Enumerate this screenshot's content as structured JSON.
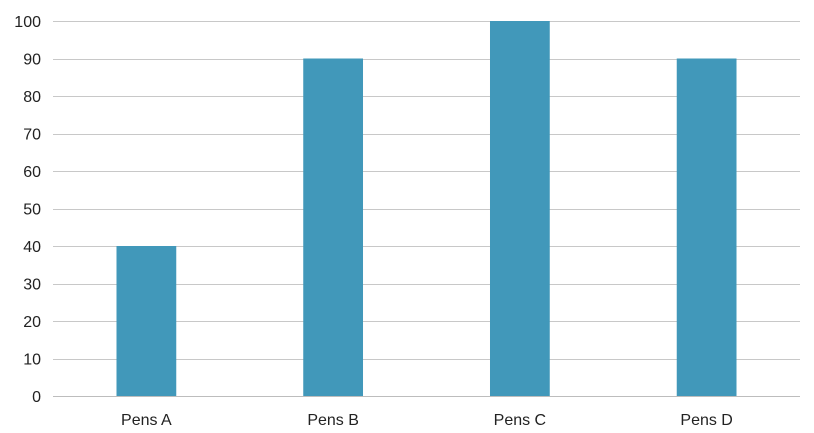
{
  "chart_data": {
    "type": "bar",
    "title": "",
    "xlabel": "",
    "ylabel": "",
    "categories": [
      "Pens A",
      "Pens B",
      "Pens C",
      "Pens D"
    ],
    "values": [
      40,
      90,
      100,
      90
    ],
    "ylim": [
      0,
      100
    ],
    "yticks": [
      0,
      10,
      20,
      30,
      40,
      50,
      60,
      70,
      80,
      90,
      100
    ],
    "grid": true,
    "legend": "none",
    "bar_color": "#4198BA"
  }
}
